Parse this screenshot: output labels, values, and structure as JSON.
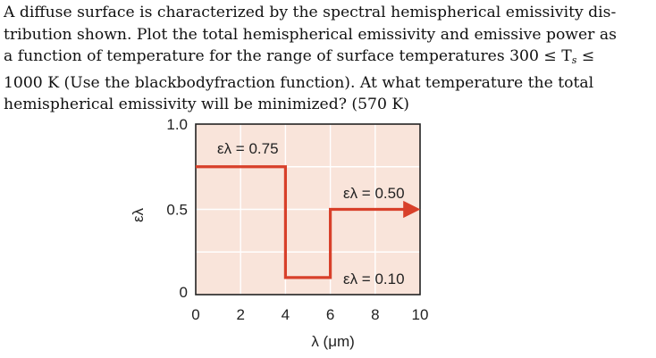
{
  "problem": {
    "line1": "A diffuse surface is characterized by the spectral hemispherical emissivity dis-",
    "line2": "tribution shown. Plot the total hemispherical emissivity and emissive power as",
    "line3": "a function of temperature for the range of surface temperatures 300 ≤ T",
    "line3_sub": "s",
    "line3_end": " ≤",
    "line4": "1000 K (Use the blackbodyfraction function). At what temperature the total",
    "line5": "hemispherical emissivity will be minimized? (570 K)"
  },
  "chart_data": {
    "type": "line",
    "ylabel": "ελ",
    "xlabel": "λ (μm)",
    "x_ticks": [
      "0",
      "2",
      "4",
      "6",
      "8",
      "10"
    ],
    "y_ticks": [
      "0",
      "0.5",
      "1.0"
    ],
    "xlim": [
      0,
      10
    ],
    "ylim": [
      0,
      1.0
    ],
    "series": [
      {
        "x": [
          0,
          4,
          4,
          6,
          6,
          10
        ],
        "values": [
          0.75,
          0.75,
          0.1,
          0.1,
          0.5,
          0.5
        ]
      }
    ],
    "annotations": [
      "ελ = 0.75",
      "ελ = 0.50",
      "ελ = 0.10"
    ],
    "colors": {
      "line": "#d8402a",
      "plot_background": "#f9e4da",
      "grid": "#ffffff"
    }
  }
}
